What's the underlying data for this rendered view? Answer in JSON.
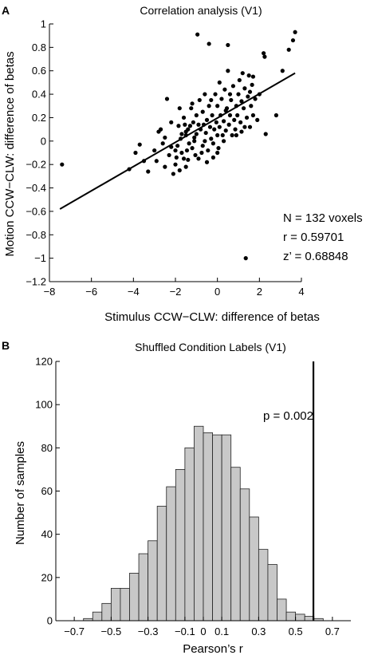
{
  "chart_data": [
    {
      "panel_label": "A",
      "type": "scatter",
      "title": "Correlation analysis (V1)",
      "xlabel": "Stimulus CCW−CLW: difference of betas",
      "ylabel": "Motion CCW−CLW: difference of betas",
      "xlim": [
        -8,
        4
      ],
      "ylim": [
        -1.2,
        1
      ],
      "xticks": [
        -8,
        -6,
        -4,
        -2,
        0,
        2,
        4
      ],
      "xtick_labels": [
        "−8",
        "−6",
        "−4",
        "−2",
        "0",
        "2",
        "4"
      ],
      "yticks": [
        -1.2,
        -1,
        -0.8,
        -0.6,
        -0.4,
        -0.2,
        0,
        0.2,
        0.4,
        0.6,
        0.8,
        1
      ],
      "ytick_labels": [
        "−1.2",
        "−1",
        "−0.8",
        "−0.6",
        "−0.4",
        "−0.2",
        "0",
        "0.2",
        "0.4",
        "0.6",
        "0.8",
        "1"
      ],
      "annotations": [
        "N = 132 voxels",
        "r = 0.59701",
        "z’ = 0.68848"
      ],
      "fit_line": {
        "x": [
          -7.5,
          3.7
        ],
        "y": [
          -0.58,
          0.58
        ]
      },
      "points": [
        [
          -7.4,
          -0.2
        ],
        [
          -4.2,
          -0.24
        ],
        [
          -3.7,
          -0.03
        ],
        [
          -3.5,
          -0.17
        ],
        [
          -3.3,
          -0.26
        ],
        [
          -3.0,
          -0.08
        ],
        [
          -2.9,
          -0.17
        ],
        [
          -2.8,
          0.08
        ],
        [
          -2.7,
          0.1
        ],
        [
          -2.5,
          0.03
        ],
        [
          -2.4,
          0.36
        ],
        [
          -2.3,
          -0.12
        ],
        [
          -2.2,
          0.16
        ],
        [
          -2.1,
          -0.28
        ],
        [
          -2.0,
          -0.2
        ],
        [
          -2.0,
          -0.08
        ],
        [
          -1.95,
          -0.14
        ],
        [
          -1.9,
          -0.04
        ],
        [
          -1.85,
          0.13
        ],
        [
          -1.8,
          -0.25
        ],
        [
          -1.75,
          0.02
        ],
        [
          -1.7,
          -0.1
        ],
        [
          -1.6,
          0.2
        ],
        [
          -1.6,
          -0.15
        ],
        [
          -1.55,
          0.14
        ],
        [
          -1.5,
          0.05
        ],
        [
          -1.5,
          -0.22
        ],
        [
          -1.45,
          -0.08
        ],
        [
          -1.4,
          0.1
        ],
        [
          -1.35,
          -0.02
        ],
        [
          -1.3,
          0.13
        ],
        [
          -1.25,
          0.28
        ],
        [
          -1.2,
          -0.06
        ],
        [
          -1.15,
          0.16
        ],
        [
          -1.1,
          0.03
        ],
        [
          -1.05,
          -0.12
        ],
        [
          -1.0,
          0.22
        ],
        [
          -1.0,
          0.06
        ],
        [
          -0.95,
          0.91
        ],
        [
          -0.9,
          -0.15
        ],
        [
          -0.85,
          0.35
        ],
        [
          -0.8,
          0.1
        ],
        [
          -0.75,
          -0.1
        ],
        [
          -0.7,
          0.25
        ],
        [
          -0.65,
          0.14
        ],
        [
          -0.6,
          0.0
        ],
        [
          -0.6,
          0.4
        ],
        [
          -0.55,
          0.07
        ],
        [
          -0.5,
          0.18
        ],
        [
          -0.45,
          -0.08
        ],
        [
          -0.4,
          0.3
        ],
        [
          -0.35,
          0.12
        ],
        [
          -0.3,
          0.02
        ],
        [
          -0.3,
          0.35
        ],
        [
          -0.25,
          0.22
        ],
        [
          -0.2,
          -0.14
        ],
        [
          -0.15,
          0.1
        ],
        [
          -0.1,
          0.4
        ],
        [
          -0.05,
          0.16
        ],
        [
          0.0,
          0.05
        ],
        [
          0.0,
          0.3
        ],
        [
          0.05,
          -0.06
        ],
        [
          0.1,
          0.12
        ],
        [
          0.15,
          0.22
        ],
        [
          0.2,
          0.36
        ],
        [
          0.25,
          0.05
        ],
        [
          0.3,
          0.17
        ],
        [
          0.35,
          0.44
        ],
        [
          0.4,
          0.09
        ],
        [
          0.45,
          0.28
        ],
        [
          0.5,
          0.6
        ],
        [
          0.55,
          0.14
        ],
        [
          0.6,
          0.22
        ],
        [
          0.65,
          0.35
        ],
        [
          0.7,
          0.05
        ],
        [
          0.75,
          0.47
        ],
        [
          0.8,
          0.18
        ],
        [
          0.85,
          0.1
        ],
        [
          0.9,
          0.3
        ],
        [
          0.95,
          0.22
        ],
        [
          1.0,
          0.4
        ],
        [
          1.05,
          0.52
        ],
        [
          1.1,
          0.16
        ],
        [
          1.15,
          0.34
        ],
        [
          1.2,
          0.58
        ],
        [
          1.25,
          0.28
        ],
        [
          1.3,
          0.45
        ],
        [
          1.35,
          -1.0
        ],
        [
          1.4,
          0.2
        ],
        [
          1.45,
          0.38
        ],
        [
          1.5,
          0.56
        ],
        [
          1.55,
          0.12
        ],
        [
          1.6,
          0.3
        ],
        [
          1.65,
          0.48
        ],
        [
          1.7,
          0.22
        ],
        [
          1.8,
          0.36
        ],
        [
          1.9,
          0.18
        ],
        [
          2.0,
          0.4
        ],
        [
          2.2,
          0.75
        ],
        [
          2.3,
          0.06
        ],
        [
          2.8,
          0.22
        ],
        [
          3.1,
          0.6
        ],
        [
          3.4,
          0.78
        ],
        [
          3.6,
          0.86
        ],
        [
          3.7,
          0.93
        ],
        [
          -0.4,
          0.83
        ],
        [
          0.5,
          0.82
        ],
        [
          -2.2,
          -0.05
        ],
        [
          -1.7,
          0.06
        ],
        [
          -0.2,
          -0.02
        ],
        [
          0.3,
          0.0
        ],
        [
          -0.7,
          -0.04
        ],
        [
          1.15,
          0.08
        ],
        [
          0.6,
          0.4
        ],
        [
          -1.4,
          -0.16
        ],
        [
          2.25,
          0.72
        ],
        [
          -2.5,
          -0.22
        ],
        [
          -3.9,
          -0.1
        ],
        [
          -0.9,
          0.14
        ],
        [
          -1.2,
          0.32
        ],
        [
          0.1,
          0.5
        ],
        [
          1.7,
          0.55
        ],
        [
          -0.5,
          -0.18
        ],
        [
          0.9,
          0.05
        ],
        [
          -2.6,
          -0.02
        ],
        [
          -1.8,
          0.28
        ],
        [
          1.3,
          0.12
        ],
        [
          0.0,
          -0.1
        ],
        [
          -1.1,
          0.0
        ],
        [
          0.4,
          0.26
        ],
        [
          1.55,
          0.42
        ],
        [
          -1.5,
          0.08
        ]
      ]
    },
    {
      "panel_label": "B",
      "type": "bar",
      "title": "Shuffled Condition Labels (V1)",
      "xlabel": "Pearson’s r",
      "ylabel": "Number of samples",
      "xlim": [
        -0.8,
        0.8
      ],
      "ylim": [
        0,
        120
      ],
      "xticks": [
        -0.7,
        -0.5,
        -0.3,
        -0.1,
        0,
        0.1,
        0.3,
        0.5,
        0.7
      ],
      "xtick_labels": [
        "−0.7",
        "−0.5",
        "−0.3",
        "−0.1",
        "0",
        "0.1",
        "0.3",
        "0.5",
        "0.7"
      ],
      "yticks": [
        0,
        20,
        40,
        60,
        80,
        100,
        120
      ],
      "ytick_labels": [
        "0",
        "20",
        "40",
        "60",
        "80",
        "100",
        "120"
      ],
      "bin_width": 0.05,
      "bins": [
        {
          "left": -0.65,
          "count": 1
        },
        {
          "left": -0.6,
          "count": 4
        },
        {
          "left": -0.55,
          "count": 8
        },
        {
          "left": -0.5,
          "count": 15
        },
        {
          "left": -0.45,
          "count": 15
        },
        {
          "left": -0.4,
          "count": 22
        },
        {
          "left": -0.35,
          "count": 31
        },
        {
          "left": -0.3,
          "count": 37
        },
        {
          "left": -0.25,
          "count": 53
        },
        {
          "left": -0.2,
          "count": 62
        },
        {
          "left": -0.15,
          "count": 70
        },
        {
          "left": -0.1,
          "count": 80
        },
        {
          "left": -0.05,
          "count": 90
        },
        {
          "left": 0.0,
          "count": 87
        },
        {
          "left": 0.05,
          "count": 86
        },
        {
          "left": 0.1,
          "count": 86
        },
        {
          "left": 0.15,
          "count": 71
        },
        {
          "left": 0.2,
          "count": 61
        },
        {
          "left": 0.25,
          "count": 48
        },
        {
          "left": 0.3,
          "count": 33
        },
        {
          "left": 0.35,
          "count": 26
        },
        {
          "left": 0.4,
          "count": 10
        },
        {
          "left": 0.45,
          "count": 4
        },
        {
          "left": 0.5,
          "count": 3
        },
        {
          "left": 0.55,
          "count": 2
        },
        {
          "left": 0.6,
          "count": 1
        }
      ],
      "threshold_line": {
        "x": 0.597
      },
      "annotations": [
        "p = 0.002"
      ]
    }
  ]
}
